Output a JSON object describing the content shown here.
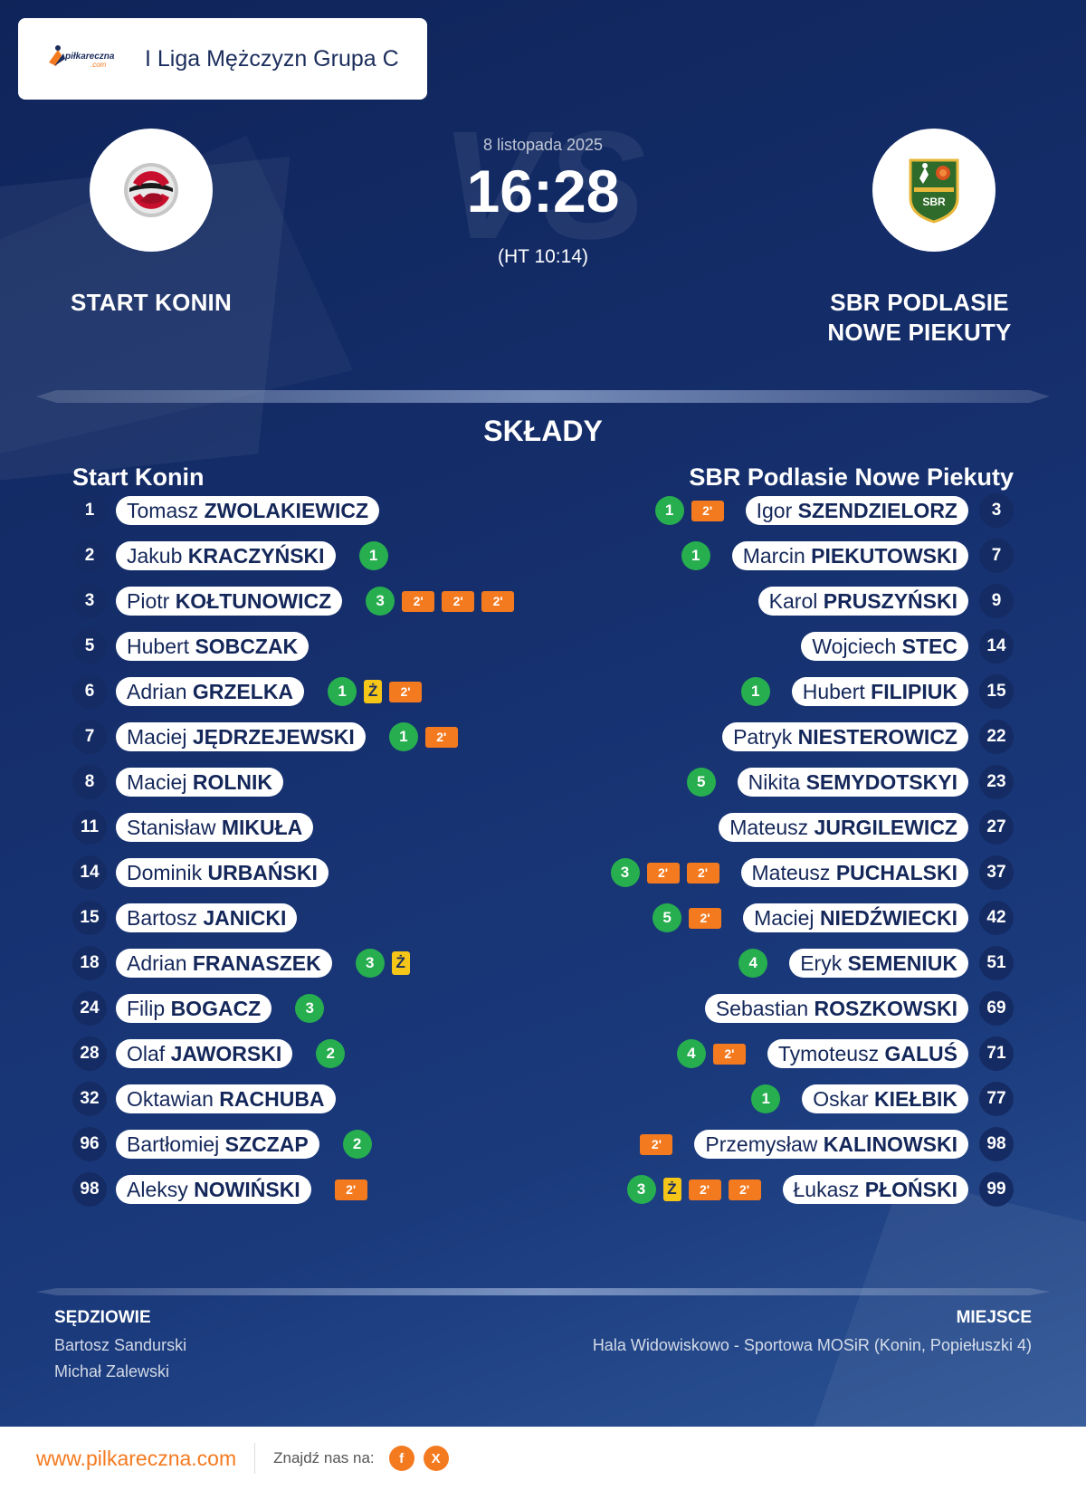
{
  "brand": {
    "logo_text": "piłkareczna",
    "logo_sub": ".com",
    "accent": "#f47a1f"
  },
  "league": {
    "name": "I Liga Mężczyzn Grupa C"
  },
  "match": {
    "date": "8 listopada 2025",
    "score": "16:28",
    "halftime": "(HT 10:14)",
    "vs_watermark": "VS"
  },
  "home": {
    "name": "START KONIN"
  },
  "away": {
    "name": "SBR PODLASIE NOWE PIEKUTY",
    "logo_text": "SBR"
  },
  "squads": {
    "title": "SKŁADY",
    "home_title": "Start Konin",
    "away_title": "SBR Podlasie Nowe Piekuty",
    "home_players": [
      {
        "number": "1",
        "first": "Tomasz",
        "last": "ZWOLAKIEWICZ",
        "goals": null,
        "yellow": false,
        "suspensions": 0
      },
      {
        "number": "2",
        "first": "Jakub",
        "last": "KRACZYŃSKI",
        "goals": "1",
        "yellow": false,
        "suspensions": 0
      },
      {
        "number": "3",
        "first": "Piotr",
        "last": "KOŁTUNOWICZ",
        "goals": "3",
        "yellow": false,
        "suspensions": 3
      },
      {
        "number": "5",
        "first": "Hubert",
        "last": "SOBCZAK",
        "goals": null,
        "yellow": false,
        "suspensions": 0
      },
      {
        "number": "6",
        "first": "Adrian",
        "last": "GRZELKA",
        "goals": "1",
        "yellow": true,
        "suspensions": 1
      },
      {
        "number": "7",
        "first": "Maciej",
        "last": "JĘDRZEJEWSKI",
        "goals": "1",
        "yellow": false,
        "suspensions": 1
      },
      {
        "number": "8",
        "first": "Maciej",
        "last": "ROLNIK",
        "goals": null,
        "yellow": false,
        "suspensions": 0
      },
      {
        "number": "11",
        "first": "Stanisław",
        "last": "MIKUŁA",
        "goals": null,
        "yellow": false,
        "suspensions": 0
      },
      {
        "number": "14",
        "first": "Dominik",
        "last": "URBAŃSKI",
        "goals": null,
        "yellow": false,
        "suspensions": 0
      },
      {
        "number": "15",
        "first": "Bartosz",
        "last": "JANICKI",
        "goals": null,
        "yellow": false,
        "suspensions": 0
      },
      {
        "number": "18",
        "first": "Adrian",
        "last": "FRANASZEK",
        "goals": "3",
        "yellow": true,
        "suspensions": 0
      },
      {
        "number": "24",
        "first": "Filip",
        "last": "BOGACZ",
        "goals": "3",
        "yellow": false,
        "suspensions": 0
      },
      {
        "number": "28",
        "first": "Olaf",
        "last": "JAWORSKI",
        "goals": "2",
        "yellow": false,
        "suspensions": 0
      },
      {
        "number": "32",
        "first": "Oktawian",
        "last": "RACHUBA",
        "goals": null,
        "yellow": false,
        "suspensions": 0
      },
      {
        "number": "96",
        "first": "Bartłomiej",
        "last": "SZCZAP",
        "goals": "2",
        "yellow": false,
        "suspensions": 0
      },
      {
        "number": "98",
        "first": "Aleksy",
        "last": "NOWIŃSKI",
        "goals": null,
        "yellow": false,
        "suspensions": 1
      }
    ],
    "away_players": [
      {
        "number": "3",
        "first": "Igor",
        "last": "SZENDZIELORZ",
        "goals": "1",
        "yellow": false,
        "suspensions": 1
      },
      {
        "number": "7",
        "first": "Marcin",
        "last": "PIEKUTOWSKI",
        "goals": "1",
        "yellow": false,
        "suspensions": 0
      },
      {
        "number": "9",
        "first": "Karol",
        "last": "PRUSZYŃSKI",
        "goals": null,
        "yellow": false,
        "suspensions": 0
      },
      {
        "number": "14",
        "first": "Wojciech",
        "last": "STEC",
        "goals": null,
        "yellow": false,
        "suspensions": 0
      },
      {
        "number": "15",
        "first": "Hubert",
        "last": "FILIPIUK",
        "goals": "1",
        "yellow": false,
        "suspensions": 0
      },
      {
        "number": "22",
        "first": "Patryk",
        "last": "NIESTEROWICZ",
        "goals": null,
        "yellow": false,
        "suspensions": 0
      },
      {
        "number": "23",
        "first": "Nikita",
        "last": "SEMYDOTSKYI",
        "goals": "5",
        "yellow": false,
        "suspensions": 0
      },
      {
        "number": "27",
        "first": "Mateusz",
        "last": "JURGILEWICZ",
        "goals": null,
        "yellow": false,
        "suspensions": 0
      },
      {
        "number": "37",
        "first": "Mateusz",
        "last": "PUCHALSKI",
        "goals": "3",
        "yellow": false,
        "suspensions": 2
      },
      {
        "number": "42",
        "first": "Maciej",
        "last": "NIEDŹWIECKI",
        "goals": "5",
        "yellow": false,
        "suspensions": 1
      },
      {
        "number": "51",
        "first": "Eryk",
        "last": "SEMENIUK",
        "goals": "4",
        "yellow": false,
        "suspensions": 0
      },
      {
        "number": "69",
        "first": "Sebastian",
        "last": "ROSZKOWSKI",
        "goals": null,
        "yellow": false,
        "suspensions": 0
      },
      {
        "number": "71",
        "first": "Tymoteusz",
        "last": "GALUŚ",
        "goals": "4",
        "yellow": false,
        "suspensions": 1
      },
      {
        "number": "77",
        "first": "Oskar",
        "last": "KIEŁBIK",
        "goals": "1",
        "yellow": false,
        "suspensions": 0
      },
      {
        "number": "98",
        "first": "Przemysław",
        "last": "KALINOWSKI",
        "goals": null,
        "yellow": false,
        "suspensions": 1
      },
      {
        "number": "99",
        "first": "Łukasz",
        "last": "PŁOŃSKI",
        "goals": "3",
        "yellow": true,
        "suspensions": 2
      }
    ],
    "suspension_label": "2'",
    "yellow_label": "Ż"
  },
  "officials": {
    "refs_label": "SĘDZIOWIE",
    "referees": [
      "Bartosz Sandurski",
      "Michał Zalewski"
    ],
    "venue_label": "MIEJSCE",
    "venue": "Hala Widowiskowo - Sportowa MOSiR (Konin, Popiełuszki 4)"
  },
  "footer": {
    "site": "www.pilkareczna.com",
    "find_us": "Znajdź nas na:",
    "icons": [
      "facebook-icon",
      "x-icon"
    ],
    "fb_glyph": "f",
    "x_glyph": "X"
  },
  "colors": {
    "background": "#16306e",
    "goal_badge": "#27ae4f",
    "suspension_badge": "#f47a1f",
    "yellow_card": "#f5c518"
  }
}
